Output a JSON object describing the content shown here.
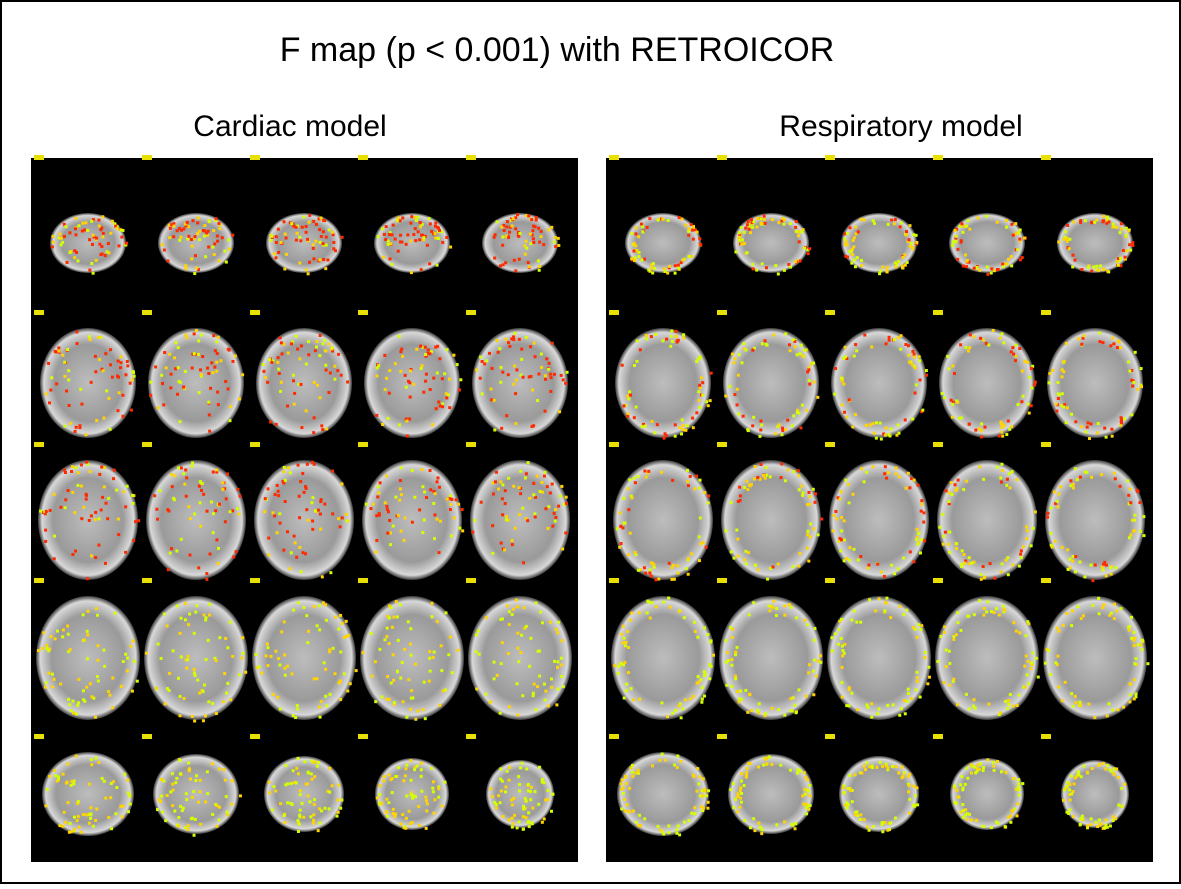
{
  "title": "F map (p < 0.001) with RETROICOR",
  "panels": [
    {
      "label": "Cardiac model"
    },
    {
      "label": "Respiratory model"
    }
  ]
}
